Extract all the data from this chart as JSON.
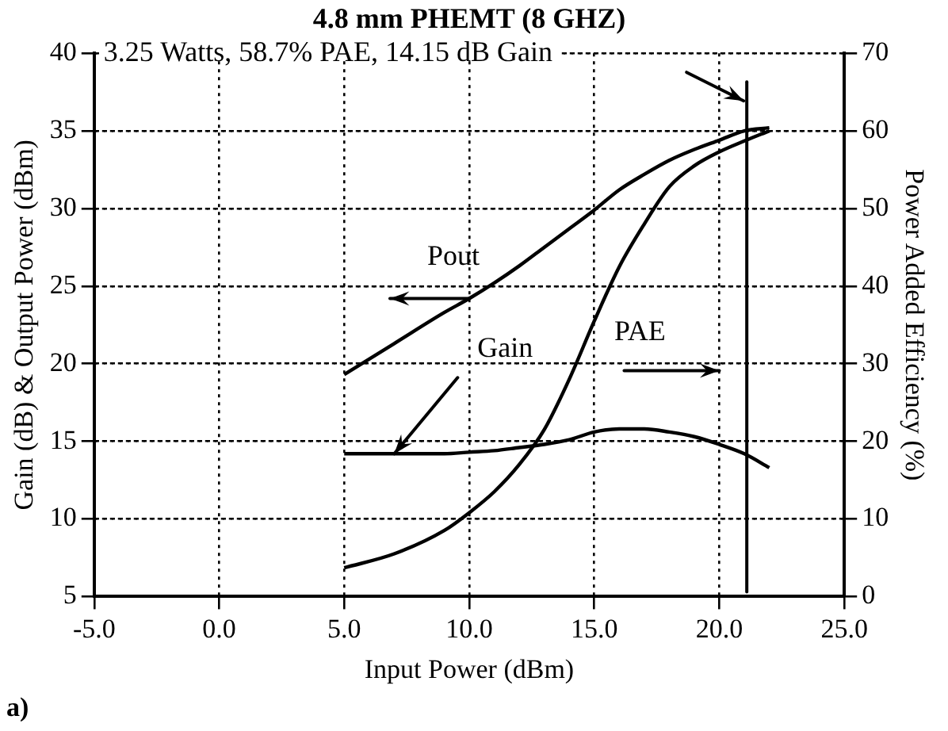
{
  "chart_data": {
    "type": "line",
    "title": "4.8 mm PHEMT (8 GHZ)",
    "subtitle": "3.25 Watts, 58.7% PAE, 14.15 dB Gain",
    "xlabel": "Input Power (dBm)",
    "ylabel": "Gain (dB) & Output Power (dBm)",
    "y2label": "Power Added Efficiency (%)",
    "x": [
      5,
      7,
      9,
      10,
      11,
      12,
      13,
      14,
      15,
      16,
      17,
      18,
      19,
      20,
      21,
      22
    ],
    "series": [
      {
        "name": "Pout",
        "color": "#000000",
        "values": [
          19.3,
          21.3,
          23.3,
          24.2,
          25.2,
          26.3,
          27.5,
          28.7,
          29.9,
          31.2,
          32.2,
          33.1,
          33.8,
          34.4,
          35,
          35.2
        ]
      },
      {
        "name": "Gain",
        "color": "#000000",
        "values": [
          14.2,
          14.2,
          14.2,
          14.3,
          14.4,
          14.6,
          14.8,
          15.1,
          15.6,
          15.8,
          15.8,
          15.6,
          15.3,
          14.8,
          14.2,
          13.3
        ]
      },
      {
        "name": "PAE",
        "color": "#000000",
        "axis": "y2",
        "values": [
          3.7,
          5.5,
          8.5,
          10.8,
          13.5,
          17,
          21.5,
          28,
          35.5,
          42.5,
          48,
          52.8,
          55.5,
          57.3,
          58.7,
          60
        ]
      }
    ],
    "xlim": [
      -5,
      25
    ],
    "xticks": [
      {
        "value": -5,
        "label": "-5.0"
      },
      {
        "value": 0,
        "label": "0.0"
      },
      {
        "value": 5,
        "label": "5.0"
      },
      {
        "value": 10,
        "label": "10.0"
      },
      {
        "value": 15,
        "label": "15.0"
      },
      {
        "value": 20,
        "label": "20.0"
      },
      {
        "value": 25,
        "label": "25.0"
      }
    ],
    "ylim": [
      5,
      40
    ],
    "yticks": [
      5,
      10,
      15,
      20,
      25,
      30,
      35,
      40
    ],
    "y2lim": [
      0,
      70
    ],
    "y2ticks": [
      0,
      10,
      20,
      30,
      40,
      50,
      60,
      70
    ],
    "ref_lines": [
      {
        "axis": "x",
        "value": 21.1,
        "color": "#000000"
      }
    ],
    "annotations": [
      "a)"
    ],
    "grid": true,
    "legend": false,
    "marker": "none",
    "line_style": "solid"
  }
}
